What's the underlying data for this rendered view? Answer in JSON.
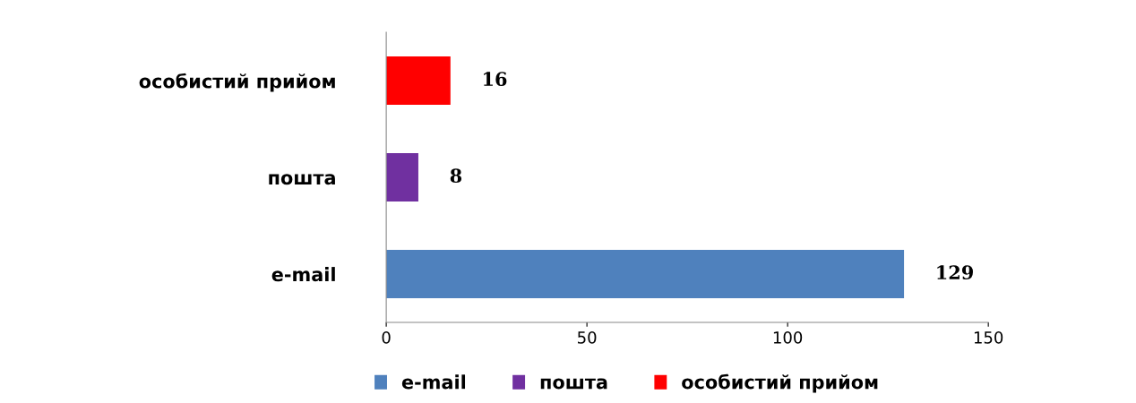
{
  "chart_data": {
    "type": "bar",
    "orientation": "horizontal",
    "categories": [
      "особистий прийом",
      "пошта",
      "e-mail"
    ],
    "series": [
      {
        "name": "e-mail",
        "color": "#4f81bd",
        "values": [
          null,
          null,
          129
        ]
      },
      {
        "name": "пошта",
        "color": "#7030a0",
        "values": [
          null,
          8,
          null
        ]
      },
      {
        "name": "особистий прийом",
        "color": "#ff0000",
        "values": [
          16,
          null,
          null
        ]
      }
    ],
    "xlim": [
      0,
      150
    ],
    "xticks": [
      0,
      50,
      100,
      150
    ],
    "data_labels": true,
    "legend": "bottom",
    "grid": false
  }
}
